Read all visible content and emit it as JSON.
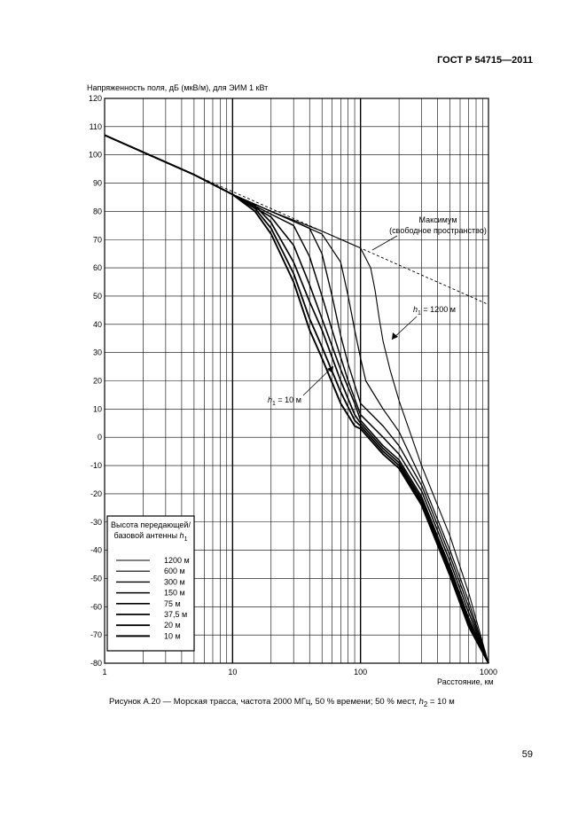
{
  "header": "ГОСТ Р 54715—2011",
  "page_number": "59",
  "caption": {
    "prefix": "Рисунок А.20 — Морская трасса, частота 2000 МГц, 50 % времени; 50 % мест, ",
    "var": "h",
    "sub": "2",
    "suffix": " = 10 м"
  },
  "chart_data": {
    "type": "line",
    "ylabel": "Напряженность поля, дБ (мкВ/м), для ЭИМ 1 кВт",
    "xlabel": "Расстояние, км",
    "x_scale": "log",
    "xlim": [
      1,
      1000
    ],
    "ylim": [
      -80,
      120
    ],
    "grid": true,
    "x_tick_labels": [
      "1",
      "10",
      "100",
      "1000"
    ],
    "y_tick_labels": [
      "120",
      "110",
      "100",
      "90",
      "80",
      "70",
      "60",
      "50",
      "40",
      "30",
      "20",
      "10",
      "0",
      "-10",
      "-20",
      "-30",
      "-40",
      "-50",
      "-60",
      "-70",
      "-80"
    ],
    "legend": {
      "title_line1": "Высота передающей/",
      "title_line2": "базовой антенны",
      "title_var": "h",
      "title_sub": "1",
      "entries": [
        "1200 м",
        "600 м",
        "300 м",
        "150 м",
        "75 м",
        "37,5 м",
        "20 м",
        "10 м"
      ],
      "placement": "bottom-left"
    },
    "annotations": {
      "max_line1": "Максимум",
      "max_line2": "(свободное пространство)",
      "h1_top": {
        "var": "h",
        "sub": "1",
        "text": " = 1200 м"
      },
      "h1_bottom": {
        "var": "h",
        "sub": "1",
        "text": " = 10 м"
      }
    },
    "free_space": {
      "x": [
        1,
        1000
      ],
      "y": [
        107,
        47
      ]
    },
    "series": [
      {
        "name": "1200 м",
        "x": [
          1,
          5,
          10,
          20,
          50,
          100,
          120,
          130,
          140,
          150,
          170,
          200,
          300,
          500,
          700,
          1000
        ],
        "y": [
          107,
          93,
          86,
          80,
          73,
          67,
          60,
          52,
          42,
          34,
          24,
          13,
          -10,
          -35,
          -55,
          -80
        ]
      },
      {
        "name": "600 м",
        "x": [
          1,
          5,
          10,
          20,
          50,
          70,
          80,
          90,
          100,
          110,
          150,
          200,
          300,
          500,
          700,
          1000
        ],
        "y": [
          107,
          93,
          86,
          80,
          72,
          62,
          50,
          38,
          28,
          20,
          10,
          2,
          -15,
          -40,
          -58,
          -80
        ]
      },
      {
        "name": "300 м",
        "x": [
          1,
          5,
          10,
          20,
          40,
          50,
          60,
          70,
          80,
          100,
          150,
          200,
          300,
          500,
          700,
          1000
        ],
        "y": [
          107,
          93,
          86,
          80,
          74,
          65,
          50,
          36,
          26,
          12,
          4,
          -3,
          -17,
          -42,
          -60,
          -80
        ]
      },
      {
        "name": "150 м",
        "x": [
          1,
          5,
          10,
          20,
          30,
          40,
          50,
          60,
          80,
          100,
          150,
          200,
          300,
          500,
          700,
          1000
        ],
        "y": [
          107,
          93,
          86,
          79,
          75,
          64,
          50,
          38,
          20,
          8,
          0,
          -6,
          -19,
          -44,
          -62,
          -80
        ]
      },
      {
        "name": "75 м",
        "x": [
          1,
          5,
          10,
          20,
          30,
          40,
          50,
          70,
          90,
          100,
          150,
          200,
          300,
          500,
          700,
          1000
        ],
        "y": [
          107,
          93,
          86,
          78,
          68,
          54,
          42,
          24,
          12,
          6,
          -3,
          -8,
          -21,
          -46,
          -64,
          -80
        ]
      },
      {
        "name": "37,5 м",
        "x": [
          1,
          5,
          10,
          15,
          20,
          30,
          40,
          50,
          70,
          90,
          100,
          150,
          200,
          300,
          500,
          700,
          1000
        ],
        "y": [
          107,
          93,
          86,
          82,
          76,
          62,
          48,
          38,
          20,
          8,
          5,
          -4,
          -9,
          -22,
          -47,
          -65,
          -80
        ]
      },
      {
        "name": "20 м",
        "x": [
          1,
          5,
          10,
          15,
          20,
          30,
          40,
          50,
          70,
          90,
          100,
          150,
          200,
          300,
          500,
          700,
          1000
        ],
        "y": [
          107,
          93,
          86,
          81,
          74,
          58,
          42,
          32,
          16,
          6,
          4,
          -5,
          -10,
          -23,
          -48,
          -66,
          -80
        ]
      },
      {
        "name": "10 м",
        "x": [
          1,
          5,
          10,
          15,
          20,
          30,
          40,
          50,
          70,
          90,
          100,
          150,
          200,
          300,
          500,
          700,
          1000
        ],
        "y": [
          107,
          93,
          86,
          80,
          72,
          55,
          38,
          28,
          12,
          4,
          3,
          -6,
          -11,
          -24,
          -49,
          -67,
          -80
        ]
      }
    ]
  }
}
